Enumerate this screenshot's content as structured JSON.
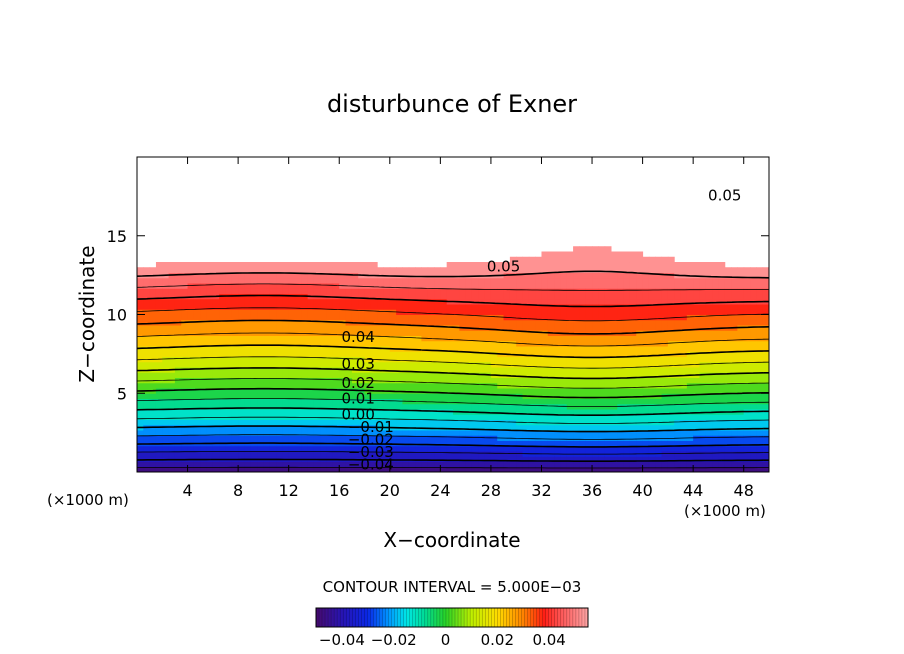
{
  "chart_data": {
    "type": "heatmap",
    "title": "disturbunce of Exner",
    "xlabel": "X−coordinate",
    "ylabel": "Z−coordinate",
    "x_unit_left": "(×1000 m)",
    "x_unit_right": "(×1000 m)",
    "xlim": [
      0,
      50
    ],
    "ylim": [
      0,
      20
    ],
    "x_ticks": [
      4,
      8,
      12,
      16,
      20,
      24,
      28,
      32,
      36,
      40,
      44,
      48
    ],
    "y_ticks": [
      5,
      10,
      15
    ],
    "contour_interval_text": "CONTOUR INTERVAL = 5.000E−03",
    "contour_interval": 0.005,
    "value_range": [
      -0.05,
      0.055
    ],
    "contour_labels": [
      {
        "text": "0.05",
        "x": 46.5,
        "y": 17.5
      },
      {
        "text": "0.05",
        "x": 29,
        "y": 13
      },
      {
        "text": "0.04",
        "x": 17.5,
        "y": 8.5
      },
      {
        "text": "0.03",
        "x": 17.5,
        "y": 6.8
      },
      {
        "text": "0.02",
        "x": 17.5,
        "y": 5.6
      },
      {
        "text": "0.01",
        "x": 17.5,
        "y": 4.6
      },
      {
        "text": "0.00",
        "x": 17.5,
        "y": 3.6
      },
      {
        "text": "−0.01",
        "x": 18.5,
        "y": 2.8
      },
      {
        "text": "−0.02",
        "x": 18.5,
        "y": 2.0
      },
      {
        "text": "−0.03",
        "x": 18.5,
        "y": 1.2
      },
      {
        "text": "−0.04",
        "x": 18.5,
        "y": 0.4
      }
    ],
    "colorbar": {
      "range": [
        -0.05,
        0.055
      ],
      "ticks": [
        {
          "label": "−0.04",
          "value": -0.04
        },
        {
          "label": "−0.02",
          "value": -0.02
        },
        {
          "label": "0",
          "value": 0
        },
        {
          "label": "0.02",
          "value": 0.02
        },
        {
          "label": "0.04",
          "value": 0.04
        }
      ]
    },
    "grid": false
  }
}
